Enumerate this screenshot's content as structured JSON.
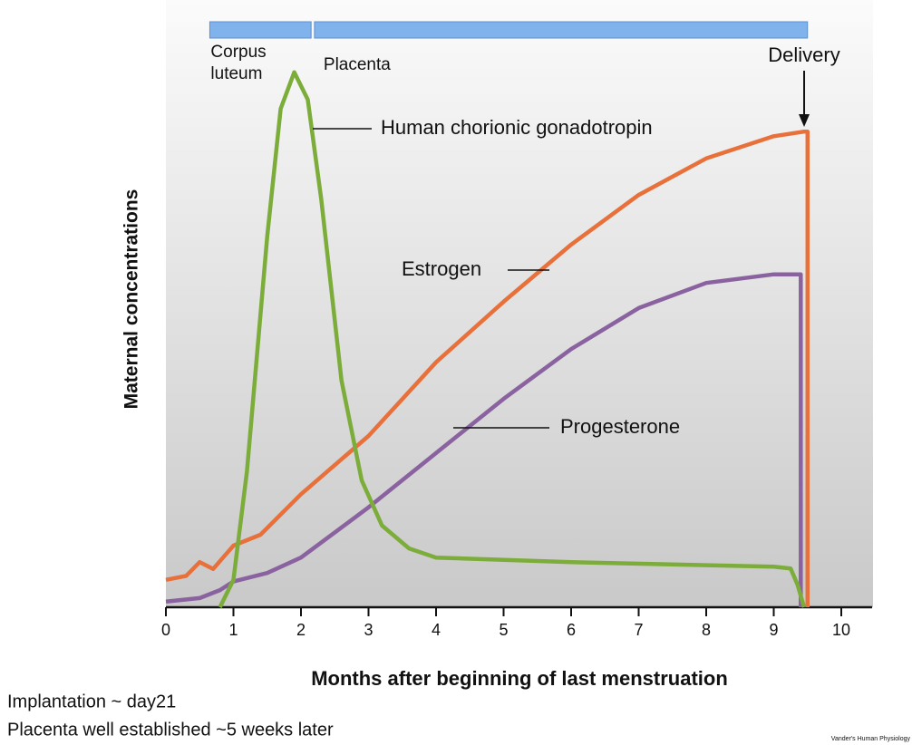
{
  "chart_data": {
    "type": "line",
    "xlabel": "Months after beginning of last menstruation",
    "ylabel": "Maternal concentrations",
    "xlim": [
      0,
      10
    ],
    "xticks": [
      0,
      1,
      2,
      3,
      4,
      5,
      6,
      7,
      8,
      9,
      10
    ],
    "ylim": [
      0,
      100
    ],
    "series": [
      {
        "name": "Human chorionic gonadotropin",
        "color": "#7cad3a",
        "x": [
          0.8,
          1,
          1.2,
          1.5,
          1.7,
          1.9,
          2.1,
          2.3,
          2.6,
          2.9,
          3.2,
          3.6,
          4,
          6,
          9,
          9.25,
          9.35,
          9.45
        ],
        "values": [
          0,
          4.8,
          23.8,
          65,
          87.3,
          93.7,
          88.9,
          71.4,
          39.7,
          22.2,
          14.3,
          10.3,
          8.7,
          7.9,
          7.1,
          6.8,
          4,
          0
        ]
      },
      {
        "name": "Estrogen",
        "color": "#e8703a",
        "x": [
          0,
          0.3,
          0.5,
          0.7,
          1,
          1.4,
          2,
          3,
          4,
          5,
          6,
          7,
          8,
          9,
          9.45,
          9.5,
          9.5
        ],
        "values": [
          4.8,
          5.5,
          7.9,
          6.7,
          10.8,
          12.7,
          19.8,
          30,
          42.9,
          53.5,
          63.5,
          72.2,
          78.6,
          82.5,
          83.3,
          83.3,
          0
        ]
      },
      {
        "name": "Progesterone",
        "color": "#8a62a0",
        "x": [
          0,
          0.5,
          0.8,
          1,
          1.5,
          2,
          3,
          4,
          5,
          6,
          7,
          8,
          9,
          9.4,
          9.4
        ],
        "values": [
          1,
          1.6,
          3,
          4.5,
          6,
          8.7,
          17.5,
          27,
          36.5,
          45.2,
          52.4,
          56.8,
          58.3,
          58.3,
          0
        ]
      }
    ],
    "phases": [
      {
        "label": [
          "Corpus",
          "luteum"
        ],
        "start": 0.65,
        "end": 2.15
      },
      {
        "label": [
          "Placenta"
        ],
        "start": 2.2,
        "end": 9.5
      }
    ],
    "annotations": [
      {
        "text": "Delivery",
        "x": 9.45
      }
    ],
    "notes": [
      "Implantation ~ day21",
      "Placenta well established ~5 weeks later"
    ],
    "credit": "Vander's Human Physiology"
  }
}
